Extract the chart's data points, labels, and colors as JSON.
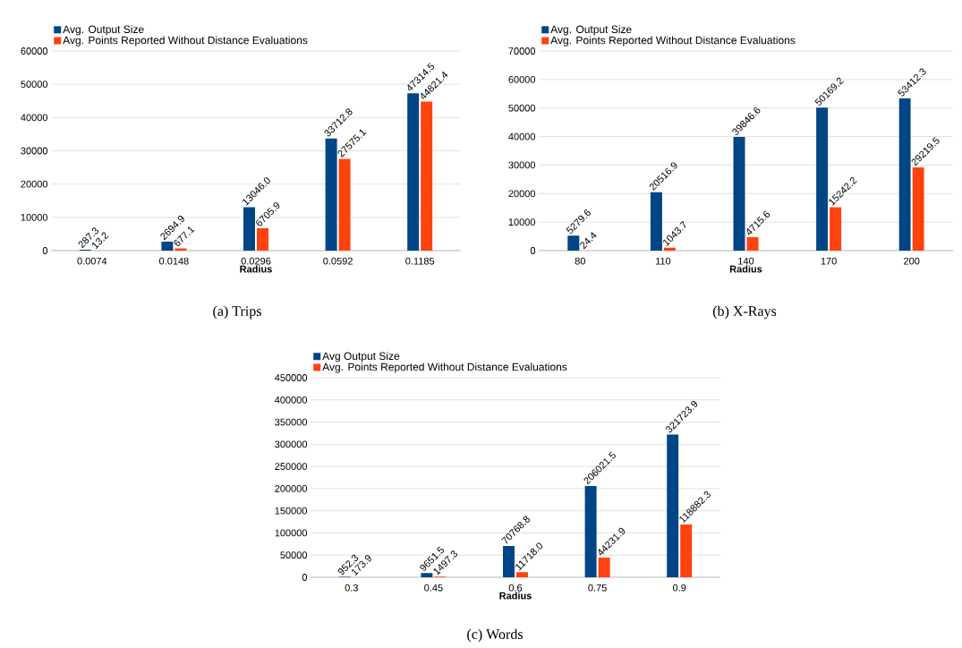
{
  "chart_data": [
    {
      "type": "bar",
      "xlabel": "Radius",
      "categories": [
        "0.0074",
        "0.0148",
        "0.0296",
        "0.0592",
        "0.1185"
      ],
      "ylim": [
        0,
        60000
      ],
      "yticks": [
        0,
        10000,
        20000,
        30000,
        40000,
        50000,
        60000
      ],
      "grid": "y",
      "legend": "top left",
      "annotations": [
        "(a) Trips"
      ],
      "series": [
        {
          "name": "Avg. Output Size",
          "color": "#004586",
          "values": [
            287.3,
            2694.9,
            13046.0,
            33712.8,
            47314.5
          ],
          "value_labels": [
            "287.3",
            "2694.9",
            "13046.0",
            "33712.8",
            "47314.5"
          ]
        },
        {
          "name": "Avg. Points Reported Without Distance Evaluations",
          "color": "#ff420e",
          "values": [
            13.2,
            677.1,
            6705.9,
            27575.1,
            44821.4
          ],
          "value_labels": [
            "13.2",
            "677.1",
            "6705.9",
            "27575.1",
            "44821.4"
          ]
        }
      ]
    },
    {
      "type": "bar",
      "xlabel": "Radius",
      "categories": [
        "80",
        "110",
        "140",
        "170",
        "200"
      ],
      "ylim": [
        0,
        70000
      ],
      "yticks": [
        0,
        10000,
        20000,
        30000,
        40000,
        50000,
        60000,
        70000
      ],
      "grid": "y",
      "legend": "top left",
      "annotations": [
        "(b) X-Rays"
      ],
      "series": [
        {
          "name": "Avg. Output Size",
          "color": "#004586",
          "values": [
            5279.6,
            20516.9,
            39846.6,
            50169.2,
            53412.3
          ],
          "value_labels": [
            "5279.6",
            "20516.9",
            "39846.6",
            "50169.2",
            "53412.3"
          ]
        },
        {
          "name": "Avg. Points Reported Without Distance Evaluations",
          "color": "#ff420e",
          "values": [
            24.4,
            1043.7,
            4715.6,
            15242.2,
            29219.5
          ],
          "value_labels": [
            "24.4",
            "1043.7",
            "4715.6",
            "15242.2",
            "29219.5"
          ]
        }
      ]
    },
    {
      "type": "bar",
      "xlabel": "Radius",
      "categories": [
        "0.3",
        "0.45",
        "0.6",
        "0.75",
        "0.9"
      ],
      "ylim": [
        0,
        450000
      ],
      "yticks": [
        0,
        50000,
        100000,
        150000,
        200000,
        250000,
        300000,
        350000,
        400000,
        450000
      ],
      "grid": "y",
      "legend": "top left",
      "annotations": [
        "(c) Words"
      ],
      "series": [
        {
          "name": "Avg Output Size",
          "color": "#004586",
          "values": [
            952.3,
            9651.5,
            70768.8,
            206021.5,
            321723.9
          ],
          "value_labels": [
            "952.3",
            "9651.5",
            "70768.8",
            "206021.5",
            "321723.9"
          ]
        },
        {
          "name": "Avg. Points Reported Without Distance Evaluations",
          "color": "#ff420e",
          "values": [
            173.9,
            1497.3,
            11718.0,
            44231.9,
            118882.3
          ],
          "value_labels": [
            "173.9",
            "1497.3",
            "11718.0",
            "44231.9",
            "118882.3"
          ]
        }
      ]
    }
  ]
}
